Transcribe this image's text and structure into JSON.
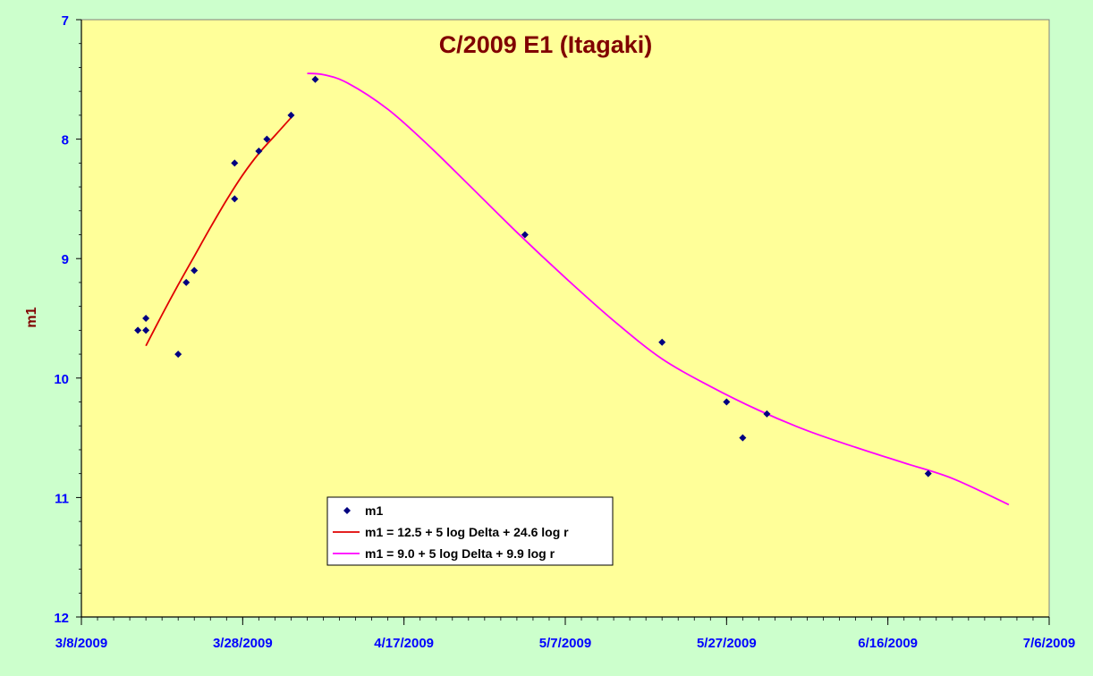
{
  "chart_data": {
    "type": "scatter",
    "title": "C/2009 E1 (Itagaki)",
    "xlabel": "",
    "ylabel": "m1",
    "x_ticks": [
      "3/8/2009",
      "3/28/2009",
      "4/17/2009",
      "5/7/2009",
      "5/27/2009",
      "6/16/2009",
      "7/6/2009"
    ],
    "xlim": [
      "2009-03-08",
      "2009-07-06"
    ],
    "y_ticks": [
      "7",
      "8",
      "9",
      "10",
      "11",
      "12"
    ],
    "ylim": [
      7,
      12
    ],
    "y_reversed": true,
    "legend_position": "bottom-center",
    "colors": {
      "background": "#ccffcc",
      "plot_area": "#ffff99",
      "title": "#800000",
      "tick_labels": "#0000ff",
      "points": "#000080",
      "fit_1": "#e00000",
      "fit_2": "#ff00ff"
    },
    "series": [
      {
        "name": "m1",
        "kind": "scatter",
        "marker": "diamond",
        "points": [
          {
            "x": "2009-03-15",
            "y": 9.6
          },
          {
            "x": "2009-03-16",
            "y": 9.5
          },
          {
            "x": "2009-03-16",
            "y": 9.6
          },
          {
            "x": "2009-03-20",
            "y": 9.8
          },
          {
            "x": "2009-03-21",
            "y": 9.2
          },
          {
            "x": "2009-03-22",
            "y": 9.1
          },
          {
            "x": "2009-03-27",
            "y": 8.2
          },
          {
            "x": "2009-03-27",
            "y": 8.5
          },
          {
            "x": "2009-03-30",
            "y": 8.1
          },
          {
            "x": "2009-03-31",
            "y": 8.0
          },
          {
            "x": "2009-04-03",
            "y": 7.8
          },
          {
            "x": "2009-04-06",
            "y": 7.5
          },
          {
            "x": "2009-05-02",
            "y": 8.8
          },
          {
            "x": "2009-05-19",
            "y": 9.7
          },
          {
            "x": "2009-05-27",
            "y": 10.2
          },
          {
            "x": "2009-05-29",
            "y": 10.5
          },
          {
            "x": "2009-06-01",
            "y": 10.3
          },
          {
            "x": "2009-06-21",
            "y": 10.8
          }
        ]
      },
      {
        "name": "m1 = 12.5 + 5 log Delta + 24.6 log r",
        "kind": "line",
        "points": [
          {
            "x": "2009-03-16",
            "y": 9.73
          },
          {
            "x": "2009-03-18",
            "y": 9.47
          },
          {
            "x": "2009-03-20",
            "y": 9.22
          },
          {
            "x": "2009-03-22",
            "y": 8.98
          },
          {
            "x": "2009-03-24",
            "y": 8.74
          },
          {
            "x": "2009-03-26",
            "y": 8.51
          },
          {
            "x": "2009-03-28",
            "y": 8.3
          },
          {
            "x": "2009-03-30",
            "y": 8.12
          },
          {
            "x": "2009-04-01",
            "y": 7.97
          },
          {
            "x": "2009-04-03",
            "y": 7.82
          }
        ]
      },
      {
        "name": "m1 = 9.0 + 5 log Delta + 9.9 log r",
        "kind": "line",
        "points": [
          {
            "x": "2009-04-05",
            "y": 7.45
          },
          {
            "x": "2009-04-07",
            "y": 7.46
          },
          {
            "x": "2009-04-10",
            "y": 7.53
          },
          {
            "x": "2009-04-15",
            "y": 7.75
          },
          {
            "x": "2009-04-20",
            "y": 8.05
          },
          {
            "x": "2009-04-25",
            "y": 8.38
          },
          {
            "x": "2009-05-01",
            "y": 8.78
          },
          {
            "x": "2009-05-07",
            "y": 9.16
          },
          {
            "x": "2009-05-13",
            "y": 9.52
          },
          {
            "x": "2009-05-19",
            "y": 9.84
          },
          {
            "x": "2009-05-25",
            "y": 10.07
          },
          {
            "x": "2009-05-31",
            "y": 10.27
          },
          {
            "x": "2009-06-06",
            "y": 10.44
          },
          {
            "x": "2009-06-12",
            "y": 10.58
          },
          {
            "x": "2009-06-18",
            "y": 10.71
          },
          {
            "x": "2009-06-24",
            "y": 10.84
          },
          {
            "x": "2009-07-01",
            "y": 11.06
          }
        ]
      }
    ]
  }
}
